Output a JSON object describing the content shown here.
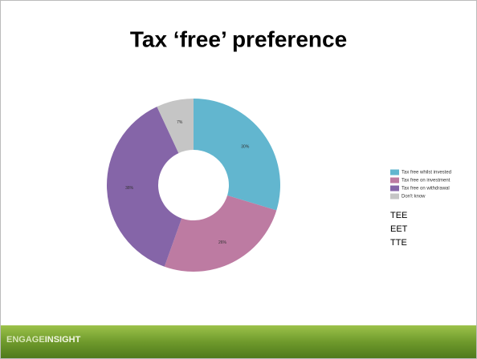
{
  "chart_data": {
    "type": "pie",
    "title": "Tax ‘free’ preference",
    "categories": [
      "Tax free whilst invested",
      "Tax free on investment",
      "Tax free on withdrawal",
      "Don't know"
    ],
    "values": [
      30,
      26,
      38,
      7
    ],
    "value_labels": [
      "30%",
      "26%",
      "38%",
      "7%"
    ],
    "colors": [
      "#62b6cf",
      "#bd7ba2",
      "#8565a8",
      "#c5c5c5"
    ],
    "donut": true
  },
  "notes": [
    "TEE",
    "EET",
    "TTE"
  ],
  "footer": {
    "logo_part1": "ENGAGE",
    "logo_part2": "INSIGHT"
  }
}
